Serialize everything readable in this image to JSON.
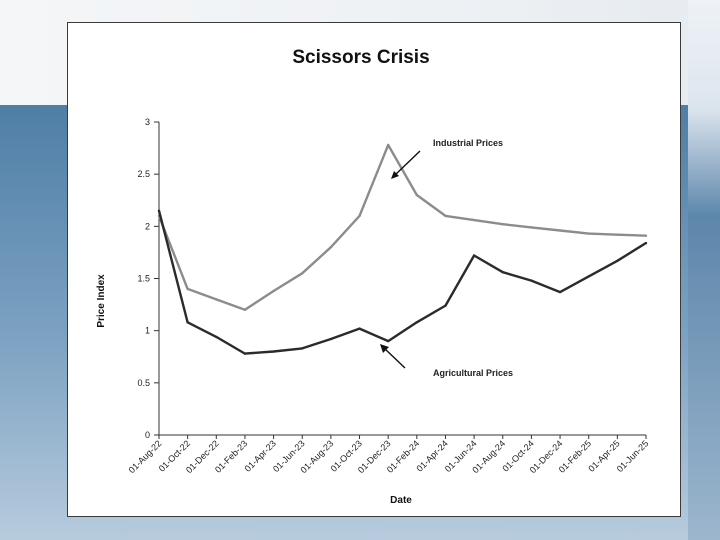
{
  "slide": {
    "colors": {
      "band_top": "#4f7ea6",
      "band_bottom": "#b7cbdd",
      "panel_bg": "#ffffff"
    }
  },
  "chart_data": {
    "type": "line",
    "title": "Scissors Crisis",
    "xlabel": "Date",
    "ylabel": "Price Index",
    "ylim": [
      0,
      3
    ],
    "yticks": [
      "0",
      "0.5",
      "1",
      "1.5",
      "2",
      "2.5",
      "3"
    ],
    "x": [
      "01-Aug-22",
      "01-Oct-22",
      "01-Dec-22",
      "01-Feb-23",
      "01-Apr-23",
      "01-Jun-23",
      "01-Aug-23",
      "01-Oct-23",
      "01-Dec-23",
      "01-Feb-24",
      "01-Apr-24",
      "01-Jun-24",
      "01-Aug-24",
      "01-Oct-24",
      "01-Dec-24",
      "01-Feb-25",
      "01-Apr-25",
      "01-Jun-25"
    ],
    "grid": false,
    "legend": "none",
    "series": [
      {
        "name": "Industrial Prices",
        "color": "#8c8c8c",
        "values": [
          2.1,
          1.4,
          1.3,
          1.2,
          1.38,
          1.55,
          1.8,
          2.1,
          2.78,
          2.3,
          2.1,
          2.06,
          2.02,
          1.99,
          1.96,
          1.93,
          1.92,
          1.91
        ]
      },
      {
        "name": "Agricultural Prices",
        "color": "#2b2b2b",
        "values": [
          2.15,
          1.08,
          0.94,
          0.78,
          0.8,
          0.83,
          0.92,
          1.02,
          0.9,
          1.08,
          1.24,
          1.72,
          1.56,
          1.48,
          1.37,
          1.52,
          1.67,
          1.84
        ]
      }
    ],
    "annotations": [
      {
        "text": "Industrial Prices"
      },
      {
        "text": "Agricultural Prices"
      }
    ]
  }
}
